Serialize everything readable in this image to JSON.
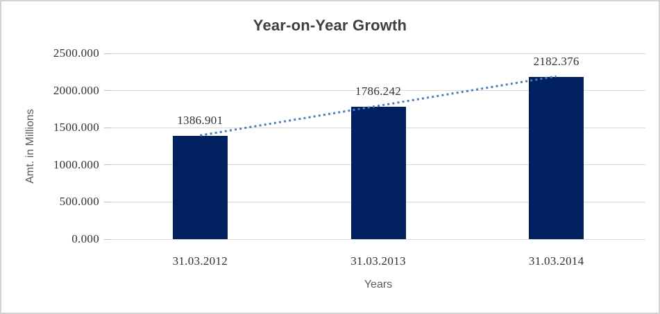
{
  "chart_data": {
    "type": "bar",
    "title": "Year-on-Year Growth",
    "xlabel": "Years",
    "ylabel": "Amt. in Millions",
    "categories": [
      "31.03.2012",
      "31.03.2013",
      "31.03.2014"
    ],
    "values": [
      1386.901,
      1786.242,
      2182.376
    ],
    "data_labels": [
      "1386.901",
      "1786.242",
      "2182.376"
    ],
    "yticks": [
      0,
      500,
      1000,
      1500,
      2000,
      2500
    ],
    "ytick_labels": [
      "0.000",
      "500.000",
      "1000.000",
      "1500.000",
      "2000.000",
      "2500.000"
    ],
    "ylim": [
      0,
      2500
    ],
    "grid": true,
    "legend_position": "none",
    "trendline": {
      "type": "linear",
      "style": "dotted",
      "color": "#4a7ebb"
    },
    "colors": {
      "bar": "#002060",
      "gridline": "#d9d9d9",
      "tick": "#bfbfbf",
      "title_text": "#3f3f3f",
      "axis_title_text": "#595959",
      "label_text": "#303030"
    }
  }
}
